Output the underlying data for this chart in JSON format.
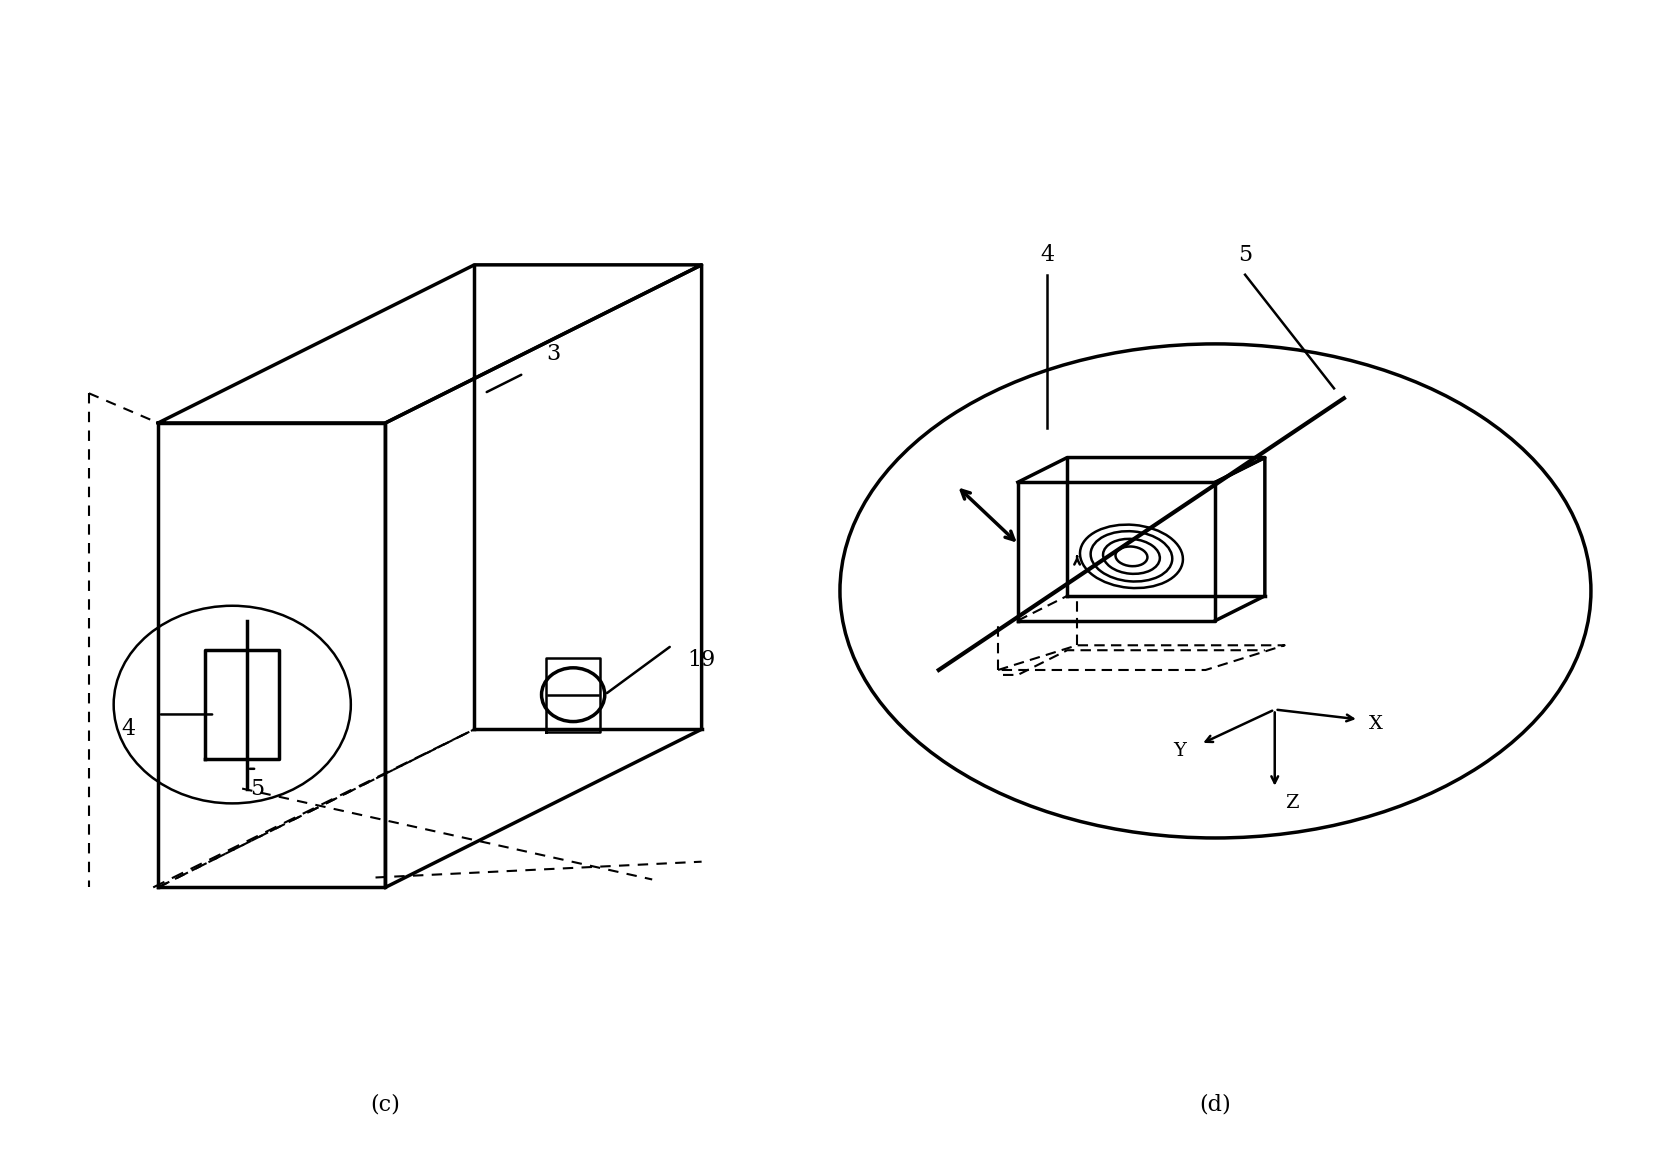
{
  "bg_color": "#ffffff",
  "line_color": "#000000",
  "fig_width": 16.72,
  "fig_height": 11.71,
  "label_c": "(c)",
  "label_d": "(d)",
  "label_3": "3",
  "label_4": "4",
  "label_5": "5",
  "label_19": "19",
  "label_4d": "4",
  "label_5d": "5",
  "label_X": "X",
  "label_Y": "Y",
  "label_Z": "Z"
}
